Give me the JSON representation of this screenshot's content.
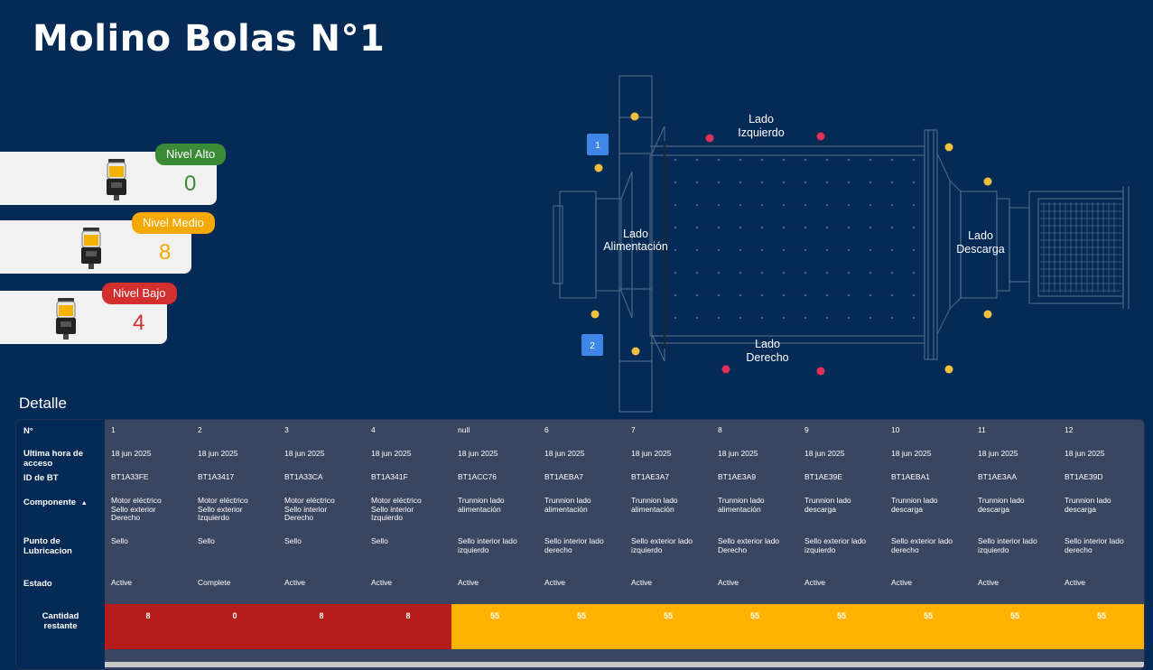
{
  "page": {
    "title": "Molino Bolas N°1"
  },
  "levels": [
    {
      "label": "Nivel Alto",
      "value": "0",
      "color": "#3a8a36"
    },
    {
      "label": "Nivel Medio",
      "value": "8",
      "color": "#f5a800"
    },
    {
      "label": "Nivel Bajo",
      "value": "4",
      "color": "#d32f2f"
    }
  ],
  "diagram": {
    "labels": {
      "left_side": [
        "Lado",
        "Izquierdo"
      ],
      "right_side": [
        "Lado",
        "Derecho"
      ],
      "feed_side": [
        "Lado",
        "Alimentación"
      ],
      "discharge_side": [
        "Lado",
        "Descarga"
      ]
    },
    "markers": [
      "1",
      "2"
    ],
    "colors": {
      "yellow_point": "#f0c040",
      "red_point": "#e0305a",
      "marker": "#3f86e8",
      "line": "#4a6585"
    }
  },
  "detail": {
    "title": "Detalle",
    "headers": {
      "n": "N°",
      "last_access": "Ultima hora de acceso",
      "bt_id": "ID de BT",
      "component": "Componente",
      "component_sort_icon": "sort-up-icon",
      "lub_point": "Punto de Lubricacion",
      "status": "Estado",
      "qty": "Cantidad restante"
    },
    "columns": [
      {
        "n": "1",
        "last_access": "18 jun 2025",
        "bt_id": "BT1A33FE",
        "component": [
          "Motor eléctrico",
          "Sello exterior",
          "Derecho"
        ],
        "lub_point": [
          "Sello"
        ],
        "status": "Active",
        "qty": "8",
        "qty_color": "#b71c1c"
      },
      {
        "n": "2",
        "last_access": "18 jun 2025",
        "bt_id": "BT1A3417",
        "component": [
          "Motor eléctrico",
          "Sello exterior",
          "Izquierdo"
        ],
        "lub_point": [
          "Sello"
        ],
        "status": "Complete",
        "qty": "0",
        "qty_color": "#b71c1c"
      },
      {
        "n": "3",
        "last_access": "18 jun 2025",
        "bt_id": "BT1A33CA",
        "component": [
          "Motor eléctrico",
          "Sello interior",
          "Derecho"
        ],
        "lub_point": [
          "Sello"
        ],
        "status": "Active",
        "qty": "8",
        "qty_color": "#b71c1c"
      },
      {
        "n": "4",
        "last_access": "18 jun 2025",
        "bt_id": "BT1A341F",
        "component": [
          "Motor eléctrico",
          "Sello interior",
          "Izquierdo"
        ],
        "lub_point": [
          "Sello"
        ],
        "status": "Active",
        "qty": "8",
        "qty_color": "#b71c1c"
      },
      {
        "n": "null",
        "last_access": "18 jun 2025",
        "bt_id": "BT1ACC76",
        "component": [
          "Trunnion lado",
          "alimentación"
        ],
        "lub_point": [
          "Sello interior lado",
          "izquierdo"
        ],
        "status": "Active",
        "qty": "55",
        "qty_color": "#ffb300"
      },
      {
        "n": "6",
        "last_access": "18 jun 2025",
        "bt_id": "BT1AEBA7",
        "component": [
          "Trunnion lado",
          "alimentación"
        ],
        "lub_point": [
          "Sello interior lado",
          "derecho"
        ],
        "status": "Active",
        "qty": "55",
        "qty_color": "#ffb300"
      },
      {
        "n": "7",
        "last_access": "18 jun 2025",
        "bt_id": "BT1AE3A7",
        "component": [
          "Trunnion lado",
          "alimentación"
        ],
        "lub_point": [
          "Sello exterior lado",
          "izquierdo"
        ],
        "status": "Active",
        "qty": "55",
        "qty_color": "#ffb300"
      },
      {
        "n": "8",
        "last_access": "18 jun 2025",
        "bt_id": "BT1AE3A9",
        "component": [
          "Trunnion lado",
          "alimentación"
        ],
        "lub_point": [
          "Sello exterior lado",
          "Derecho"
        ],
        "status": "Active",
        "qty": "55",
        "qty_color": "#ffb300"
      },
      {
        "n": "9",
        "last_access": "18 jun 2025",
        "bt_id": "BT1AE39E",
        "component": [
          "Trunnion lado",
          "descarga"
        ],
        "lub_point": [
          "Sello exterior lado",
          "izquierdo"
        ],
        "status": "Active",
        "qty": "55",
        "qty_color": "#ffb300"
      },
      {
        "n": "10",
        "last_access": "18 jun 2025",
        "bt_id": "BT1AEBA1",
        "component": [
          "Trunnion lado",
          "descarga"
        ],
        "lub_point": [
          "Sello exterior lado",
          "derecho"
        ],
        "status": "Active",
        "qty": "55",
        "qty_color": "#ffb300"
      },
      {
        "n": "11",
        "last_access": "18 jun 2025",
        "bt_id": "BT1AE3AA",
        "component": [
          "Trunnion lado",
          "descarga"
        ],
        "lub_point": [
          "Sello interior lado",
          "izquierdo"
        ],
        "status": "Active",
        "qty": "55",
        "qty_color": "#ffb300"
      },
      {
        "n": "12",
        "last_access": "18 jun 2025",
        "bt_id": "BT1AE39D",
        "component": [
          "Trunnion lado",
          "descarga"
        ],
        "lub_point": [
          "Sello interior lado",
          "derecho"
        ],
        "status": "Active",
        "qty": "55",
        "qty_color": "#ffb300"
      }
    ]
  }
}
